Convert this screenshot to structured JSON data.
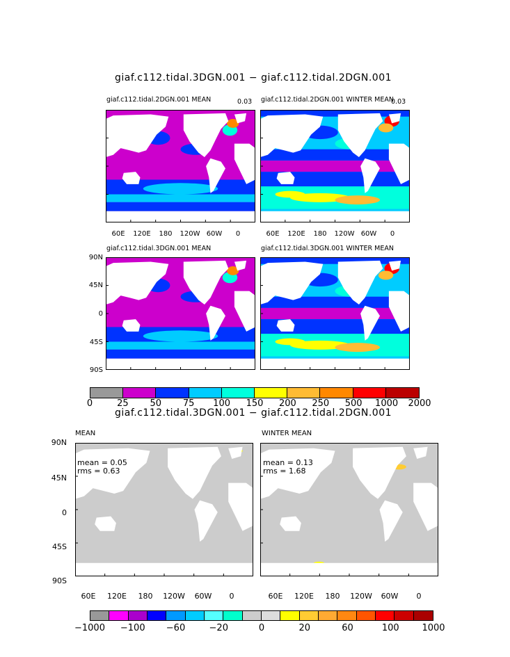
{
  "top": {
    "title": "giaf.c112.tidal.3DGN.001 − giaf.c112.tidal.2DGN.001",
    "panels": [
      {
        "title": "giaf.c112.tidal.2DGN.001 MEAN",
        "corner": "0.03"
      },
      {
        "title": "giaf.c112.tidal.2DGN.001 WINTER MEAN",
        "corner": "0.03"
      },
      {
        "title": "giaf.c112.tidal.3DGN.001 MEAN",
        "corner": ""
      },
      {
        "title": "giaf.c112.tidal.3DGN.001 WINTER MEAN",
        "corner": ""
      }
    ],
    "lat_labels": [
      "90N",
      "45N",
      "0",
      "45S",
      "90S"
    ],
    "lon_labels": [
      "60E",
      "120E",
      "180",
      "120W",
      "60W",
      "0"
    ],
    "colorbar": {
      "colors": [
        "#999999",
        "#cc00cc",
        "#0033ff",
        "#00ccff",
        "#00ffdd",
        "#ffff00",
        "#ffbb33",
        "#ff8800",
        "#ff0000",
        "#bb0000"
      ],
      "labels": [
        "0",
        "25",
        "50",
        "75",
        "100",
        "150",
        "200",
        "250",
        "500",
        "1000",
        "2000"
      ]
    }
  },
  "bottom": {
    "title": "giaf.c112.tidal.3DGN.001 − giaf.c112.tidal.2DGN.001",
    "panels": [
      {
        "title": "MEAN",
        "mean": "mean = 0.05",
        "rms": "rms = 0.63"
      },
      {
        "title": "WINTER MEAN",
        "mean": "mean = 0.13",
        "rms": "rms = 1.68"
      }
    ],
    "lat_labels": [
      "90N",
      "45N",
      "0",
      "45S",
      "90S"
    ],
    "lon_labels": [
      "60E",
      "120E",
      "180",
      "120W",
      "60W",
      "0"
    ],
    "colorbar": {
      "colors": [
        "#999999",
        "#ff00ff",
        "#aa00cc",
        "#0000ff",
        "#0099ff",
        "#00ccff",
        "#55ffff",
        "#00ffcc",
        "#cccccc",
        "#dddddd",
        "#ffff00",
        "#ffcc33",
        "#ffaa33",
        "#ff8811",
        "#ff5500",
        "#ff0000",
        "#cc0000",
        "#aa0000"
      ],
      "labels": [
        "−1000",
        "−100",
        "−60",
        "−20",
        "0",
        "20",
        "60",
        "100",
        "1000"
      ]
    }
  }
}
